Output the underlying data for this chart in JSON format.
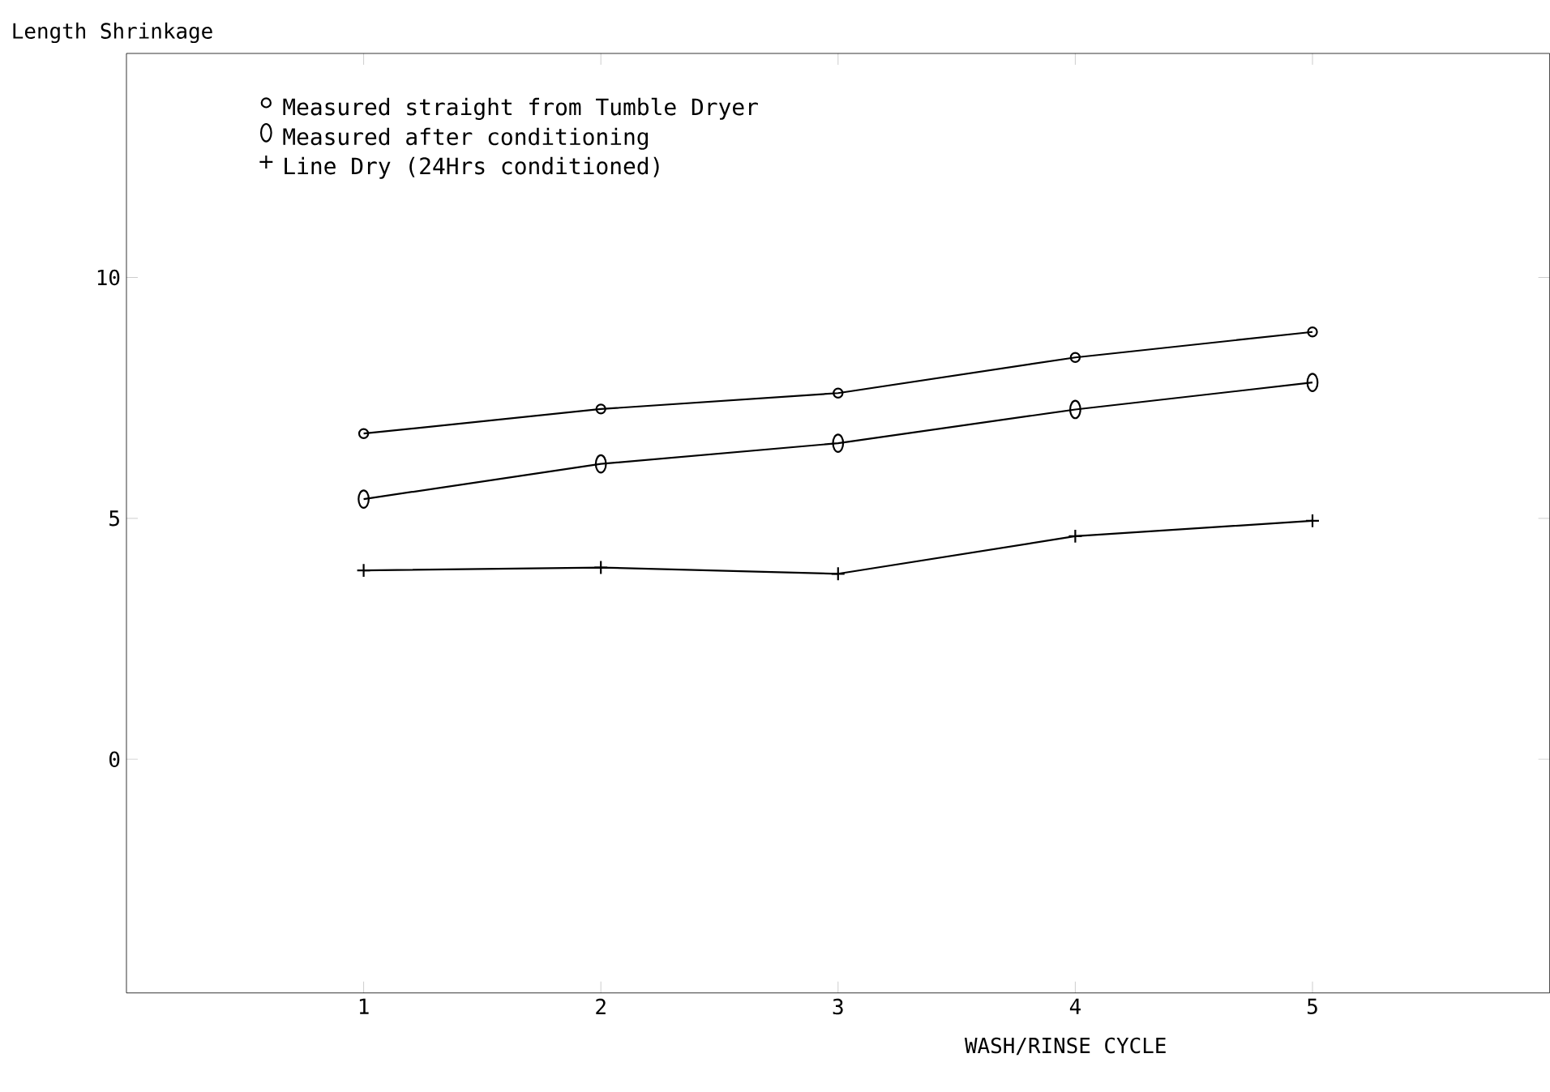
{
  "chart_data": {
    "type": "line",
    "ylabel": "Length Shrinkage",
    "xlabel": "WASH/RINSE CYCLE",
    "x": [
      1,
      2,
      3,
      4,
      5
    ],
    "series": [
      {
        "name": "Measured straight from Tumble Dryer",
        "color": "#000000",
        "marker": "circle",
        "values": [
          6.76,
          7.27,
          7.6,
          8.34,
          8.87
        ]
      },
      {
        "name": "Measured after conditioning",
        "color": "#000000",
        "marker": "circle",
        "values": [
          5.4,
          6.13,
          6.56,
          7.26,
          7.82
        ]
      },
      {
        "name": "Line Dry (24Hrs conditioned)",
        "color": "#000000",
        "marker": "cross",
        "values": [
          3.92,
          3.98,
          3.85,
          4.63,
          4.95
        ]
      }
    ],
    "xlim": [
      0,
      6
    ],
    "ylim": [
      -4.85,
      14.65
    ],
    "xticks": [
      1,
      2,
      3,
      4,
      5
    ],
    "yticks": [
      0,
      5,
      10
    ],
    "legend": "top left",
    "grid": false,
    "line_style": "solid"
  }
}
